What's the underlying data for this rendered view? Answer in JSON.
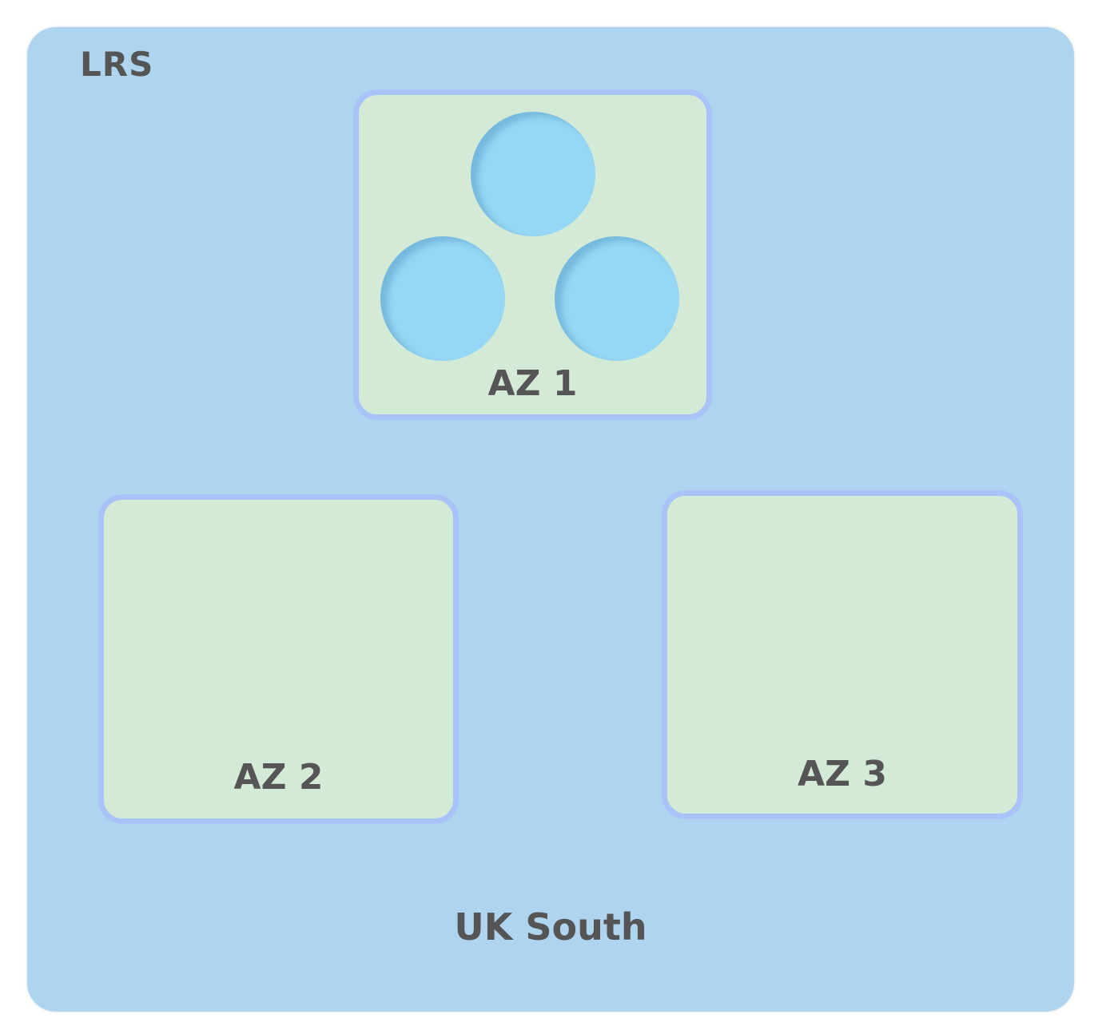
{
  "diagram": {
    "redundancy": "LRS",
    "region": "UK South",
    "zones": [
      {
        "label": "AZ 1",
        "replicas": 3
      },
      {
        "label": "AZ 2",
        "replicas": 0
      },
      {
        "label": "AZ 3",
        "replicas": 0
      }
    ]
  },
  "colors": {
    "region_fill": "#aed4f0",
    "zone_fill": "#d3ead6",
    "zone_border": "#a9c3f8",
    "replica_fill": "#95d7f4",
    "text": "#555555"
  },
  "icons": [
    "replica-disk-icon"
  ]
}
